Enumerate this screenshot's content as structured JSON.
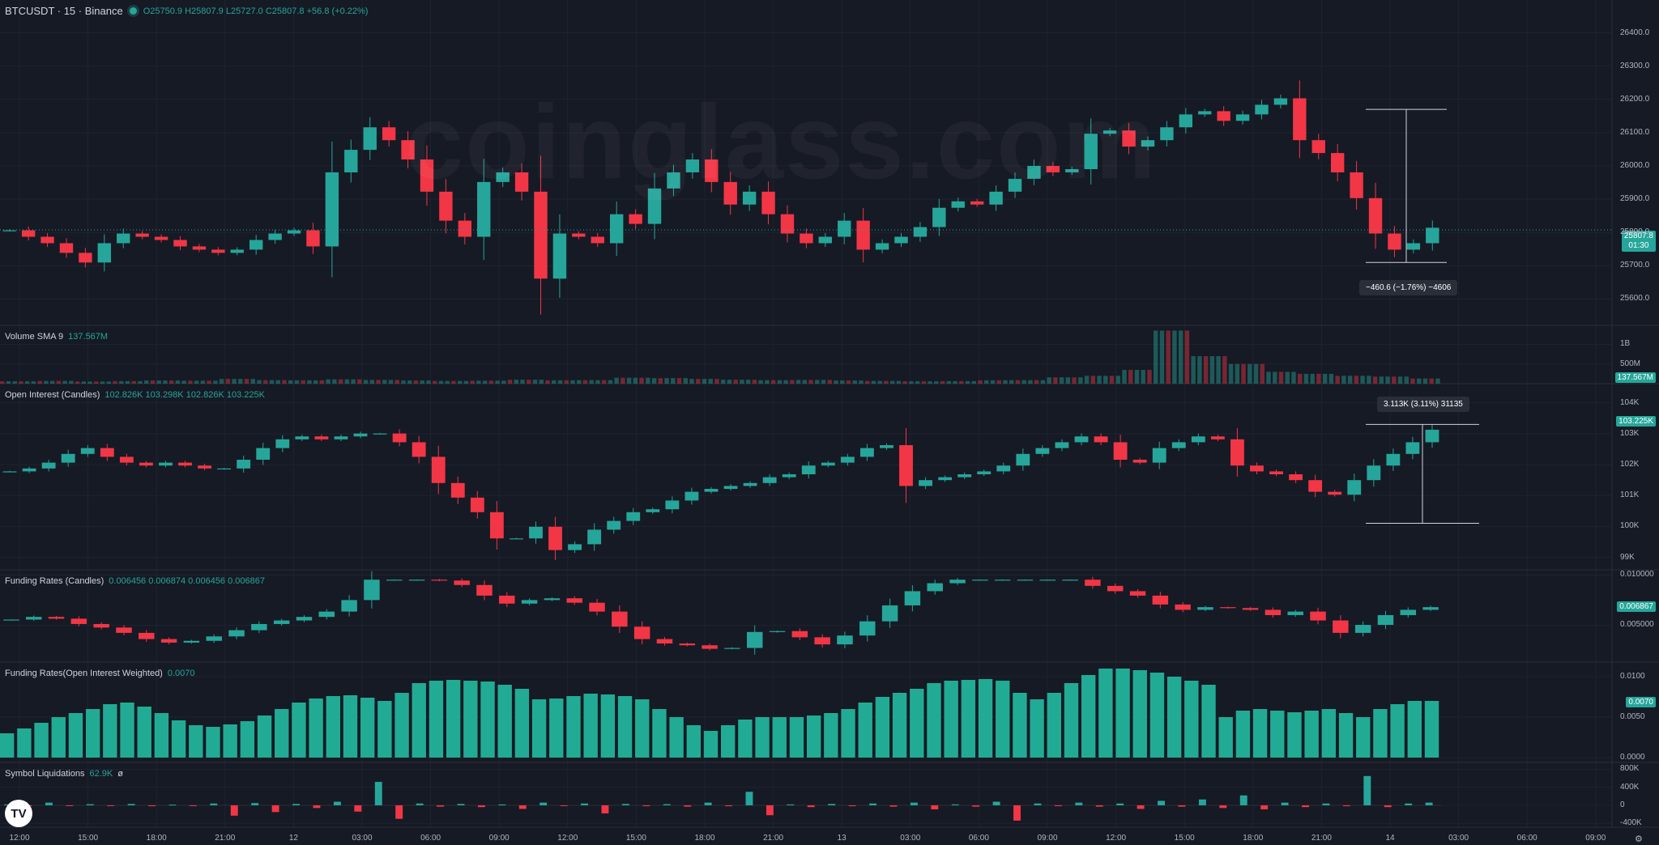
{
  "header": {
    "symbol": "BTCUSDT · 15 · Binance",
    "open": "O25750.9",
    "high": "H25807.9",
    "low": "L25727.0",
    "close": "C25807.8",
    "change": "+56.8 (+0.22%)"
  },
  "watermark": "coinglass.com",
  "colors": {
    "up": "#26a69a",
    "down": "#f23645",
    "ohlc_bg": "#161a25",
    "up_bar": "#22ab94"
  },
  "panes": {
    "price": {
      "price_label": "25807.8",
      "countdown": "01:30",
      "measure": "−460.6 (−1.76%) −4606"
    },
    "volume": {
      "name": "Volume SMA 9",
      "value": "137.567M",
      "badge": "137.567M"
    },
    "oi": {
      "name": "Open Interest (Candles)",
      "values": "102.826K 103.298K 102.826K 103.225K",
      "badge": "103.225K",
      "measure": "3.113K (3.11%) 31135"
    },
    "fr": {
      "name": "Funding Rates (Candles)",
      "values": "0.006456 0.006874 0.006456 0.006867",
      "badge": "0.006867"
    },
    "frw": {
      "name": "Funding Rates(Open Interest Weighted)",
      "value": "0.0070",
      "badge": "0.0070"
    },
    "liq": {
      "name": "Symbol Liquidations",
      "value": "62.9K",
      "extra": "ø"
    }
  },
  "logo": "TV",
  "settings_icon": "gear-icon",
  "chart_data": [
    {
      "type": "candlestick",
      "title": "BTCUSDT · 15 · Binance",
      "x_ticks": [
        "12:00",
        "15:00",
        "18:00",
        "21:00",
        "12",
        "03:00",
        "06:00",
        "09:00",
        "12:00",
        "15:00",
        "18:00",
        "21:00",
        "13",
        "03:00",
        "06:00",
        "09:00",
        "12:00",
        "15:00",
        "18:00",
        "21:00",
        "14",
        "03:00",
        "06:00",
        "09:00"
      ],
      "y_ticks": [
        "26400.0",
        "26300.0",
        "26200.0",
        "26100.0",
        "26000.0",
        "25900.0",
        "25800.0",
        "25700.0",
        "25600.0"
      ],
      "ylim": [
        25550,
        26450
      ],
      "series": [
        {
          "name": "BTCUSDT",
          "close": [
            25800,
            25780,
            25760,
            25730,
            25700,
            25760,
            25790,
            25780,
            25770,
            25750,
            25740,
            25730,
            25740,
            25770,
            25790,
            25800,
            25750,
            25980,
            26050,
            26120,
            26080,
            26020,
            25920,
            25830,
            25780,
            25950,
            25980,
            25920,
            25650,
            25790,
            25780,
            25760,
            25850,
            25820,
            25930,
            25980,
            26020,
            25950,
            25880,
            25920,
            25850,
            25790,
            25760,
            25780,
            25830,
            25740,
            25760,
            25780,
            25810,
            25870,
            25890,
            25880,
            25920,
            25960,
            26000,
            25980,
            25990,
            26100,
            26110,
            26060,
            26080,
            26120,
            26160,
            26170,
            26140,
            26160,
            26190,
            26210,
            26080,
            26040,
            25980,
            25900,
            25790,
            25740,
            25760,
            25808
          ]
        }
      ],
      "categories": [
        "12:00",
        "15:00",
        "18:00",
        "21:00",
        "12",
        "03:00",
        "06:00",
        "09:00",
        "12:00",
        "15:00",
        "18:00",
        "21:00",
        "13",
        "03:00",
        "06:00",
        "09:00",
        "12:00",
        "15:00",
        "18:00",
        "21:00",
        "14",
        "03:00"
      ]
    },
    {
      "type": "bar",
      "title": "Volume SMA 9",
      "y_ticks": [
        "1B",
        "500M"
      ],
      "series": [
        {
          "name": "Volume",
          "values": [
            60,
            70,
            55,
            65,
            80,
            75,
            120,
            90,
            85,
            110,
            95,
            80,
            70,
            75,
            100,
            85,
            90,
            150,
            140,
            120,
            100,
            90,
            95,
            80,
            70,
            60,
            65,
            85,
            90,
            160,
            200,
            350,
            1350,
            700,
            500,
            300,
            250,
            200,
            180,
            130
          ]
        }
      ]
    },
    {
      "type": "candlestick",
      "title": "Open Interest (Candles)",
      "y_ticks": [
        "104K",
        "103K",
        "102K",
        "101K",
        "100K",
        "99K"
      ],
      "ylim": [
        98.7,
        104.2
      ],
      "series": [
        {
          "name": "Open Interest",
          "close": [
            101.8,
            101.9,
            102.1,
            102.4,
            102.6,
            102.3,
            102.1,
            102.0,
            102.1,
            102.0,
            101.9,
            101.9,
            102.2,
            102.6,
            102.9,
            103.0,
            102.9,
            103.0,
            103.1,
            103.1,
            102.8,
            102.3,
            101.4,
            100.9,
            100.4,
            99.5,
            99.5,
            99.9,
            99.1,
            99.3,
            99.8,
            100.1,
            100.4,
            100.5,
            100.8,
            101.1,
            101.2,
            101.3,
            101.4,
            101.6,
            101.7,
            102.0,
            102.1,
            102.3,
            102.6,
            102.7,
            101.3,
            101.5,
            101.6,
            101.7,
            101.8,
            102.0,
            102.4,
            102.6,
            102.8,
            103.0,
            102.8,
            102.2,
            102.1,
            102.6,
            102.8,
            103.0,
            102.9,
            102.0,
            101.8,
            101.7,
            101.5,
            101.1,
            101.0,
            101.5,
            102.0,
            102.4,
            102.8,
            103.23
          ]
        }
      ]
    },
    {
      "type": "candlestick",
      "title": "Funding Rates (Candles)",
      "y_ticks": [
        "0.010000",
        "0.005000"
      ],
      "ylim": [
        0.0018,
        0.0102
      ],
      "series": [
        {
          "name": "Funding Rates",
          "close": [
            0.0055,
            0.0058,
            0.0056,
            0.005,
            0.0046,
            0.004,
            0.0033,
            0.0029,
            0.0031,
            0.0036,
            0.0043,
            0.005,
            0.0054,
            0.0058,
            0.0064,
            0.0077,
            0.01,
            0.01,
            0.01,
            0.0099,
            0.0094,
            0.0082,
            0.0073,
            0.0077,
            0.0079,
            0.0074,
            0.0064,
            0.0047,
            0.0033,
            0.0028,
            0.0026,
            0.0022,
            0.0023,
            0.0041,
            0.0042,
            0.0035,
            0.0027,
            0.0037,
            0.0053,
            0.0071,
            0.0087,
            0.0096,
            0.01,
            0.01,
            0.01,
            0.01,
            0.01,
            0.01,
            0.0093,
            0.0087,
            0.0082,
            0.0072,
            0.0066,
            0.0069,
            0.0068,
            0.0066,
            0.006,
            0.0064,
            0.0054,
            0.004,
            0.0049,
            0.006,
            0.0066,
            0.0069
          ]
        }
      ]
    },
    {
      "type": "bar",
      "title": "Funding Rates(Open Interest Weighted)",
      "y_ticks": [
        "0.0100",
        "0.0050",
        "0.0000"
      ],
      "ylim": [
        0,
        0.0112
      ],
      "series": [
        {
          "name": "Funding Rates(Open Interest Weighted)",
          "values": [
            0.003,
            0.0036,
            0.0043,
            0.005,
            0.0055,
            0.006,
            0.0066,
            0.0068,
            0.0063,
            0.0055,
            0.0046,
            0.004,
            0.0038,
            0.0041,
            0.0045,
            0.0052,
            0.006,
            0.0068,
            0.0073,
            0.0076,
            0.0077,
            0.0074,
            0.007,
            0.008,
            0.0092,
            0.0095,
            0.0096,
            0.0095,
            0.0094,
            0.009,
            0.0085,
            0.0072,
            0.0073,
            0.0076,
            0.0079,
            0.0078,
            0.0076,
            0.0072,
            0.006,
            0.005,
            0.004,
            0.0033,
            0.004,
            0.0047,
            0.005,
            0.005,
            0.005,
            0.0052,
            0.0055,
            0.006,
            0.0068,
            0.0075,
            0.008,
            0.0085,
            0.0092,
            0.0095,
            0.0096,
            0.0097,
            0.0095,
            0.008,
            0.0072,
            0.008,
            0.0092,
            0.0102,
            0.011,
            0.011,
            0.0108,
            0.0105,
            0.01,
            0.0095,
            0.009,
            0.005,
            0.0058,
            0.006,
            0.0058,
            0.0056,
            0.0058,
            0.006,
            0.0055,
            0.005,
            0.006,
            0.0066,
            0.007,
            0.007
          ]
        }
      ]
    },
    {
      "type": "bar",
      "title": "Symbol Liquidations",
      "y_ticks": [
        "800K",
        "400K",
        "0",
        "-400K"
      ],
      "ylim": [
        -450000,
        880000
      ],
      "series": [
        {
          "name": "Symbol Liquidations",
          "values": [
            20000,
            -20000,
            60000,
            -15000,
            25000,
            -10000,
            30000,
            -20000,
            15000,
            -10000,
            40000,
            -230000,
            50000,
            -150000,
            30000,
            -60000,
            80000,
            -140000,
            520000,
            -300000,
            40000,
            -30000,
            30000,
            -40000,
            20000,
            -80000,
            60000,
            -10000,
            40000,
            -180000,
            30000,
            -20000,
            25000,
            -30000,
            60000,
            -20000,
            300000,
            -220000,
            20000,
            -40000,
            30000,
            -20000,
            40000,
            -30000,
            60000,
            -90000,
            20000,
            -30000,
            80000,
            -340000,
            40000,
            -20000,
            60000,
            -30000,
            40000,
            -80000,
            100000,
            -30000,
            130000,
            -60000,
            220000,
            -90000,
            60000,
            -40000,
            40000,
            -20000,
            650000,
            -40000,
            40000,
            60000
          ]
        }
      ]
    }
  ]
}
